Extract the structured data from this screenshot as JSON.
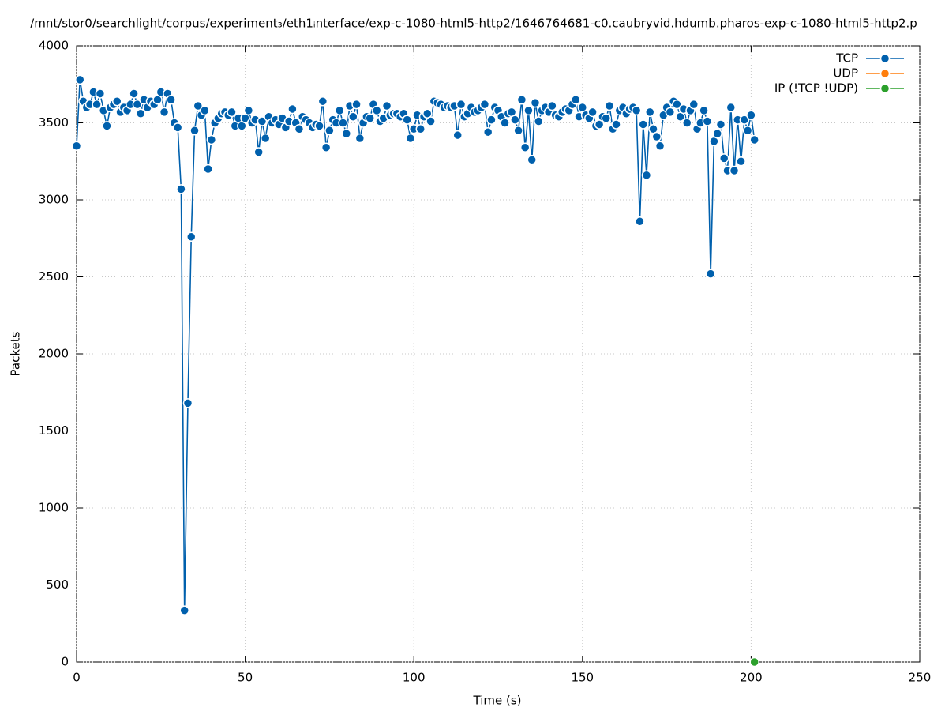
{
  "chart_data": {
    "type": "line",
    "title": "/mnt/stor0/searchlight/corpus/experiment₃/eth1ᵢnterface/exp-c-1080-html5-http2/1646764681-c0.caubryvid.hdumb.pharos-exp-c-1080-html5-http2.p",
    "xlabel": "Time (s)",
    "ylabel": "Packets",
    "xlim": [
      0,
      250
    ],
    "xticks": [
      0,
      50,
      100,
      150,
      200,
      250
    ],
    "ylim": [
      0,
      4000
    ],
    "yticks": [
      0,
      500,
      1000,
      1500,
      2000,
      2500,
      3000,
      3500,
      4000
    ],
    "grid": true,
    "legend": "top-right",
    "series": [
      {
        "name": "TCP",
        "color": "#0060ad",
        "x": [
          0,
          1,
          2,
          3,
          4,
          5,
          6,
          7,
          8,
          9,
          10,
          11,
          12,
          13,
          14,
          15,
          16,
          17,
          18,
          19,
          20,
          21,
          22,
          23,
          24,
          25,
          26,
          27,
          28,
          29,
          30,
          31,
          32,
          33,
          34,
          35,
          36,
          37,
          38,
          39,
          40,
          41,
          42,
          43,
          44,
          45,
          46,
          47,
          48,
          49,
          50,
          51,
          52,
          53,
          54,
          55,
          56,
          57,
          58,
          59,
          60,
          61,
          62,
          63,
          64,
          65,
          66,
          67,
          68,
          69,
          70,
          71,
          72,
          73,
          74,
          75,
          76,
          77,
          78,
          79,
          80,
          81,
          82,
          83,
          84,
          85,
          86,
          87,
          88,
          89,
          90,
          91,
          92,
          93,
          94,
          95,
          96,
          97,
          98,
          99,
          100,
          101,
          102,
          103,
          104,
          105,
          106,
          107,
          108,
          109,
          110,
          111,
          112,
          113,
          114,
          115,
          116,
          117,
          118,
          119,
          120,
          121,
          122,
          123,
          124,
          125,
          126,
          127,
          128,
          129,
          130,
          131,
          132,
          133,
          134,
          135,
          136,
          137,
          138,
          139,
          140,
          141,
          142,
          143,
          144,
          145,
          146,
          147,
          148,
          149,
          150,
          151,
          152,
          153,
          154,
          155,
          156,
          157,
          158,
          159,
          160,
          161,
          162,
          163,
          164,
          165,
          166,
          167,
          168,
          169,
          170,
          171,
          172,
          173,
          174,
          175,
          176,
          177,
          178,
          179,
          180,
          181,
          182,
          183,
          184,
          185,
          186,
          187,
          188,
          189,
          190,
          191,
          192,
          193,
          194,
          195,
          196,
          197,
          198,
          199,
          200,
          201
        ],
        "values": [
          3350,
          3780,
          3640,
          3600,
          3620,
          3700,
          3620,
          3690,
          3580,
          3480,
          3600,
          3620,
          3640,
          3570,
          3600,
          3580,
          3620,
          3690,
          3620,
          3560,
          3650,
          3600,
          3640,
          3620,
          3650,
          3700,
          3570,
          3690,
          3650,
          3500,
          3470,
          3070,
          335,
          1680,
          2760,
          3450,
          3610,
          3550,
          3580,
          3200,
          3390,
          3500,
          3530,
          3560,
          3570,
          3550,
          3570,
          3480,
          3530,
          3480,
          3530,
          3580,
          3500,
          3520,
          3310,
          3510,
          3400,
          3540,
          3500,
          3520,
          3490,
          3530,
          3470,
          3510,
          3590,
          3500,
          3460,
          3540,
          3520,
          3500,
          3470,
          3490,
          3480,
          3640,
          3340,
          3450,
          3520,
          3500,
          3580,
          3500,
          3430,
          3610,
          3540,
          3620,
          3400,
          3500,
          3540,
          3530,
          3620,
          3580,
          3510,
          3530,
          3610,
          3550,
          3560,
          3560,
          3540,
          3560,
          3520,
          3400,
          3460,
          3550,
          3460,
          3540,
          3560,
          3510,
          3640,
          3630,
          3620,
          3600,
          3610,
          3600,
          3610,
          3420,
          3620,
          3540,
          3560,
          3600,
          3570,
          3580,
          3600,
          3620,
          3440,
          3520,
          3600,
          3580,
          3540,
          3500,
          3560,
          3570,
          3520,
          3450,
          3650,
          3340,
          3580,
          3260,
          3630,
          3510,
          3580,
          3600,
          3570,
          3610,
          3550,
          3540,
          3570,
          3590,
          3580,
          3620,
          3650,
          3540,
          3600,
          3550,
          3530,
          3570,
          3480,
          3490,
          3540,
          3530,
          3610,
          3460,
          3490,
          3580,
          3600,
          3560,
          3590,
          3600,
          3580,
          2860,
          3490,
          3160,
          3570,
          3460,
          3410,
          3350,
          3550,
          3600,
          3570,
          3640,
          3620,
          3540,
          3590,
          3500,
          3580,
          3620,
          3460,
          3500,
          3580,
          3510,
          2520,
          3380,
          3430,
          3490,
          3270,
          3190,
          3600,
          3190,
          3520,
          3250,
          3520,
          3450,
          3550,
          3390
        ]
      },
      {
        "name": "UDP",
        "color": "#ff7f0e",
        "x": [],
        "values": []
      },
      {
        "name": "IP (!TCP  !UDP)",
        "color": "#2ca02c",
        "x": [
          201
        ],
        "values": [
          0
        ]
      }
    ]
  }
}
